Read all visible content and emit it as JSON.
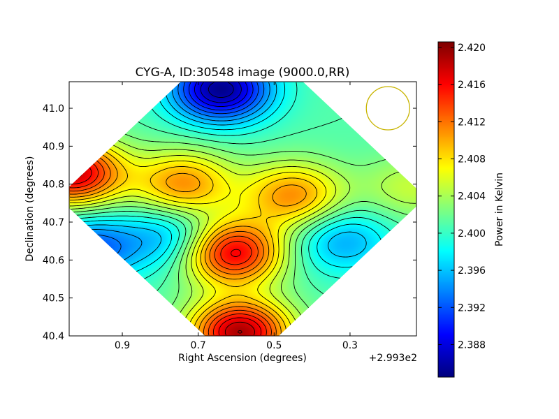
{
  "chart_data": {
    "type": "heatmap",
    "title": "CYG-A, ID:30548 image (9000.0,RR)",
    "xlabel": "Right Ascension (degrees)",
    "ylabel": "Declination (degrees)",
    "x_offset_label": "+2.993e2",
    "x_offset": 299.3,
    "xlim": [
      1.04,
      0.125
    ],
    "ylim": [
      40.4,
      41.07
    ],
    "x_ticks": [
      0.9,
      0.7,
      0.5,
      0.3
    ],
    "x_tick_labels": [
      "0.9",
      "0.7",
      "0.5",
      "0.3"
    ],
    "y_ticks": [
      40.4,
      40.5,
      40.6,
      40.7,
      40.8,
      40.9,
      41.0
    ],
    "y_tick_labels": [
      "40.4",
      "40.5",
      "40.6",
      "40.7",
      "40.8",
      "40.9",
      "41.0"
    ],
    "colorbar": {
      "label": "Power in Kelvin",
      "colormap": "jet",
      "range": [
        2.3845,
        2.4206
      ],
      "ticks": [
        2.388,
        2.392,
        2.396,
        2.4,
        2.404,
        2.408,
        2.412,
        2.416,
        2.42
      ],
      "tick_labels": [
        "2.388",
        "2.392",
        "2.396",
        "2.400",
        "2.404",
        "2.408",
        "2.412",
        "2.416",
        "2.420"
      ]
    },
    "features": [
      {
        "kind": "minimum",
        "x": 0.64,
        "y": 41.05,
        "value": 2.385
      },
      {
        "kind": "maximum",
        "x": 1.03,
        "y": 40.83,
        "value": 2.418
      },
      {
        "kind": "maximum",
        "x": 0.61,
        "y": 40.62,
        "value": 2.417
      },
      {
        "kind": "maximum",
        "x": 0.59,
        "y": 40.41,
        "value": 2.419
      },
      {
        "kind": "maximum",
        "x": 0.74,
        "y": 40.8,
        "value": 2.411
      },
      {
        "kind": "maximum",
        "x": 0.45,
        "y": 40.77,
        "value": 2.411
      },
      {
        "kind": "minimum",
        "x": 0.99,
        "y": 40.63,
        "value": 2.392
      },
      {
        "kind": "minimum",
        "x": 0.77,
        "y": 40.66,
        "value": 2.395
      },
      {
        "kind": "minimum",
        "x": 0.32,
        "y": 40.65,
        "value": 2.395
      },
      {
        "kind": "maximum",
        "x": 0.14,
        "y": 40.79,
        "value": 2.405
      }
    ],
    "beam_marker": {
      "shape": "circle",
      "x": 0.2,
      "y": 41.0,
      "color": "#c8b400"
    }
  }
}
